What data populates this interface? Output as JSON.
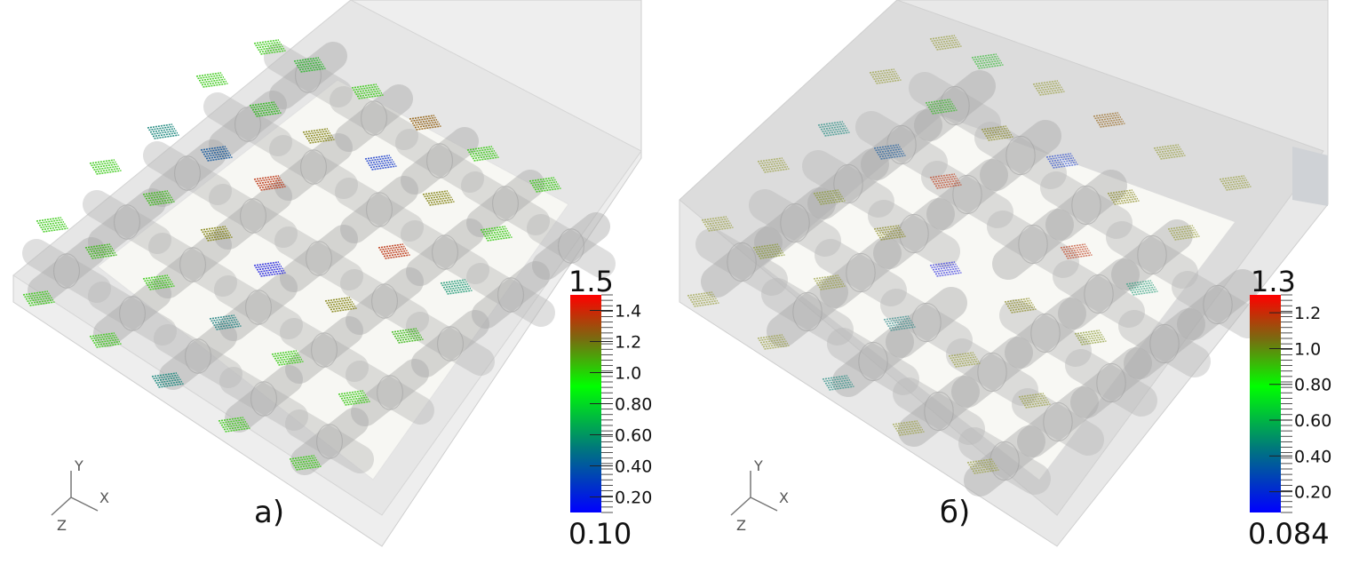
{
  "panels": [
    {
      "label": "а)",
      "axes": {
        "x": "X",
        "y": "Y",
        "z": "Z"
      },
      "colorbar": {
        "max_label": "1.5",
        "min_label": "0.10",
        "range": [
          0.1,
          1.5
        ],
        "ticks": [
          {
            "value": 1.4,
            "label": "1.4"
          },
          {
            "value": 1.2,
            "label": "1.2"
          },
          {
            "value": 1.0,
            "label": "1.0"
          },
          {
            "value": 0.8,
            "label": "0.80"
          },
          {
            "value": 0.6,
            "label": "0.60"
          },
          {
            "value": 0.4,
            "label": "0.40"
          },
          {
            "value": 0.2,
            "label": "0.20"
          }
        ],
        "colors": [
          "#0000ff",
          "#008080",
          "#00ff00",
          "#808000",
          "#ff0000"
        ]
      }
    },
    {
      "label": "б)",
      "axes": {
        "x": "X",
        "y": "Y",
        "z": "Z"
      },
      "colorbar": {
        "max_label": "1.3",
        "min_label": "0.084",
        "range": [
          0.084,
          1.3
        ],
        "ticks": [
          {
            "value": 1.2,
            "label": "1.2"
          },
          {
            "value": 1.0,
            "label": "1.0"
          },
          {
            "value": 0.8,
            "label": "0.80"
          },
          {
            "value": 0.6,
            "label": "0.60"
          },
          {
            "value": 0.4,
            "label": "0.40"
          },
          {
            "value": 0.2,
            "label": "0.20"
          }
        ],
        "colors": [
          "#0000ff",
          "#008080",
          "#00ff00",
          "#808000",
          "#ff0000"
        ]
      }
    }
  ]
}
